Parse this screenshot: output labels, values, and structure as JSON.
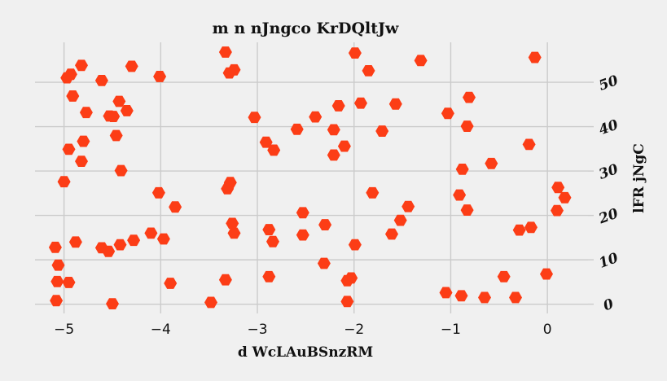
{
  "chart_data": {
    "type": "scatter",
    "title": "m  n nJngco KrDQltJw",
    "xlabel": "d WcLAuBSnzRM",
    "ylabel": "lFR jNgC",
    "xlim": [
      -5.3,
      0.42
    ],
    "ylim": [
      -0.8,
      59
    ],
    "xticks": [
      -5,
      -4,
      -3,
      -2,
      -1,
      0
    ],
    "xtick_labels": [
      "−5",
      "−4",
      "−3",
      "−2",
      "−1",
      "0"
    ],
    "yticks": [
      0,
      10,
      20,
      30,
      40,
      50
    ],
    "ytick_labels": [
      "0",
      "10",
      "20",
      "30",
      "40",
      "50"
    ],
    "y_axis_side": "right",
    "grid": true,
    "marker": "hexagon",
    "color": "#fc3d16",
    "x": [
      -0.13,
      -4.82,
      -3.33,
      -4.3,
      -1.99,
      -3.24,
      -3.29,
      -1.85,
      -1.31,
      -4.97,
      -4.93,
      -4.01,
      -4.61,
      -4.91,
      -4.43,
      -4.53,
      -4.49,
      -0.81,
      -4.77,
      -2.16,
      -4.35,
      -1.93,
      -1.57,
      -1.03,
      -2.4,
      -3.03,
      -0.83,
      -2.59,
      -2.21,
      -1.71,
      -4.46,
      -4.8,
      -2.1,
      -2.91,
      -4.95,
      -2.83,
      -2.21,
      -0.19,
      -4.82,
      -0.58,
      -0.88,
      -4.41,
      -5.0,
      0.11,
      -3.28,
      -3.31,
      0.18,
      -4.02,
      -0.91,
      -1.81,
      -1.44,
      -3.85,
      -0.83,
      0.1,
      -2.53,
      -3.26,
      -1.52,
      -2.3,
      -0.17,
      -2.88,
      -0.29,
      -3.24,
      -1.61,
      -2.53,
      -4.1,
      -4.28,
      -3.97,
      -4.88,
      -2.84,
      -4.42,
      -1.99,
      -4.61,
      -5.09,
      -4.54,
      -5.06,
      -2.31,
      -0.01,
      -2.88,
      -3.33,
      -2.03,
      -0.45,
      -4.95,
      -2.07,
      -5.07,
      -3.9,
      -1.05,
      -0.89,
      -0.65,
      -0.33,
      -5.08,
      -2.07,
      -3.48,
      -4.5
    ],
    "y": [
      55.6,
      53.8,
      56.8,
      53.6,
      56.6,
      52.8,
      52.1,
      52.6,
      54.9,
      51.0,
      51.8,
      51.3,
      50.4,
      46.9,
      45.7,
      42.4,
      42.3,
      46.6,
      43.2,
      44.7,
      43.6,
      45.3,
      45.1,
      43.0,
      42.2,
      42.1,
      40.1,
      39.4,
      39.3,
      39.0,
      38.0,
      36.7,
      35.6,
      36.5,
      34.9,
      34.7,
      33.6,
      36.0,
      32.2,
      31.7,
      30.4,
      30.1,
      27.6,
      26.3,
      27.4,
      26.0,
      24.0,
      25.1,
      24.6,
      25.1,
      22.0,
      21.9,
      21.2,
      21.1,
      20.6,
      18.2,
      18.9,
      17.9,
      17.3,
      16.8,
      16.7,
      16.0,
      15.8,
      15.6,
      16.0,
      14.4,
      14.7,
      14.0,
      14.1,
      13.4,
      13.4,
      12.7,
      12.8,
      11.9,
      8.8,
      9.2,
      6.8,
      6.2,
      5.5,
      5.9,
      6.2,
      4.9,
      5.3,
      5.1,
      4.7,
      2.6,
      1.9,
      1.5,
      1.5,
      0.8,
      0.6,
      0.4,
      0.1
    ]
  }
}
